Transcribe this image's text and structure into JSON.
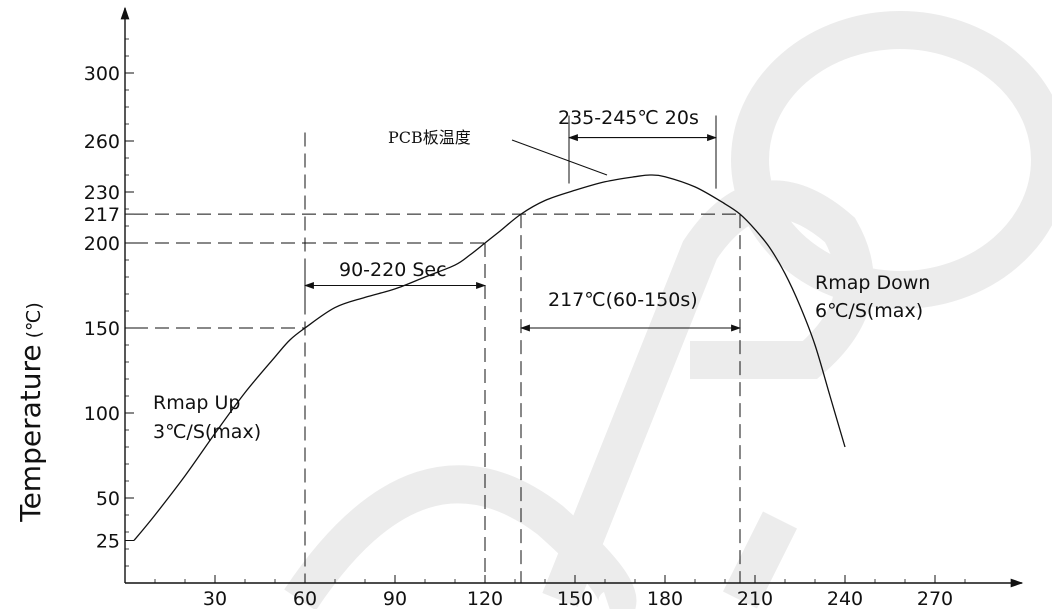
{
  "chart_data": {
    "type": "line",
    "title": "",
    "xlabel": "",
    "ylabel": "Temperature",
    "ylabel_unit": "(℃)",
    "xlim": [
      0,
      285
    ],
    "ylim": [
      0,
      340
    ],
    "x_ticks": [
      30,
      60,
      90,
      120,
      150,
      180,
      210,
      240,
      270
    ],
    "y_ticks": [
      25,
      50,
      100,
      150,
      200,
      217,
      230,
      260,
      300
    ],
    "grid": false,
    "series": [
      {
        "name": "",
        "x": [
          3,
          10,
          20,
          30,
          40,
          50,
          55,
          60,
          70,
          80,
          90,
          100,
          110,
          115,
          120,
          125,
          132,
          140,
          150,
          160,
          170,
          175,
          180,
          190,
          200,
          205,
          210,
          215,
          220,
          225,
          230,
          235,
          240
        ],
        "y": [
          25,
          40,
          63,
          88,
          112,
          133,
          143,
          150,
          162,
          168,
          173,
          180,
          187,
          193,
          200,
          207,
          217,
          225,
          231,
          236,
          239,
          240,
          239,
          233,
          223,
          217,
          208,
          197,
          182,
          163,
          140,
          110,
          80
        ]
      }
    ],
    "annotations": {
      "pcb_label": "PCB板温度",
      "peak_label": "235-245℃ 20s",
      "soak_label": "90-220 Sec",
      "reflow_label": "217℃(60-150s)",
      "rampup_line1": "Rmap Up",
      "rampup_line2": "3℃/S(max)",
      "rampdown_line1": "Rmap Down",
      "rampdown_line2": "6℃/S(max)"
    },
    "reference_lines": {
      "vertical_x": [
        60,
        120,
        132,
        205
      ],
      "horizontal_y": [
        150,
        200,
        217
      ],
      "peak_bracket_x": [
        148,
        197
      ]
    },
    "watermark": "OPTO",
    "watermark_color": "#ececec"
  }
}
